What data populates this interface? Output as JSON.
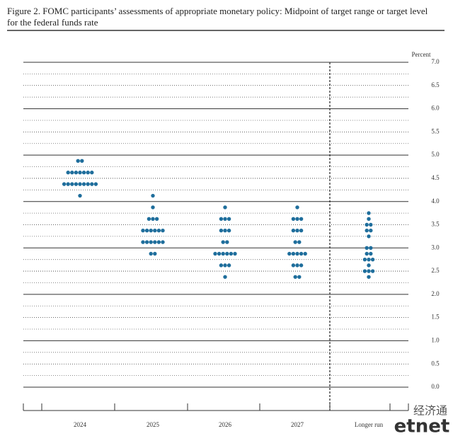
{
  "chart_data": {
    "type": "dot",
    "title": "Figure 2.  FOMC participants’ assessments of appropriate monetary policy:  Midpoint of target range or target level for the federal funds rate",
    "y_label": "Percent",
    "categories": [
      "2024",
      "2025",
      "2026",
      "2027",
      "Longer run"
    ],
    "color": "#1f6e9c",
    "values": [
      [
        4.875,
        4.875,
        4.625,
        4.625,
        4.625,
        4.625,
        4.625,
        4.625,
        4.625,
        4.375,
        4.375,
        4.375,
        4.375,
        4.375,
        4.375,
        4.375,
        4.375,
        4.375,
        4.125
      ],
      [
        4.125,
        3.875,
        3.625,
        3.625,
        3.625,
        3.375,
        3.375,
        3.375,
        3.375,
        3.375,
        3.375,
        3.125,
        3.125,
        3.125,
        3.125,
        3.125,
        3.125,
        2.875,
        2.875
      ],
      [
        3.875,
        3.625,
        3.625,
        3.625,
        3.375,
        3.375,
        3.375,
        3.125,
        3.125,
        2.875,
        2.875,
        2.875,
        2.875,
        2.875,
        2.875,
        2.625,
        2.625,
        2.625,
        2.375
      ],
      [
        3.875,
        3.625,
        3.625,
        3.625,
        3.375,
        3.375,
        3.375,
        3.125,
        3.125,
        2.875,
        2.875,
        2.875,
        2.875,
        2.875,
        2.625,
        2.625,
        2.625,
        2.375,
        2.375
      ],
      [
        3.75,
        3.625,
        3.5,
        3.5,
        3.375,
        3.375,
        3.25,
        3.0,
        3.0,
        2.875,
        2.875,
        2.75,
        2.75,
        2.75,
        2.625,
        2.5,
        2.5,
        2.5,
        2.375
      ]
    ],
    "ylim": [
      0,
      7
    ],
    "yticks": [
      {
        "value": 7,
        "label": "7.0"
      },
      {
        "value": 6.5,
        "label": "6.5"
      },
      {
        "value": 6,
        "label": "6.0"
      },
      {
        "value": 5.5,
        "label": "5.5"
      },
      {
        "value": 5,
        "label": "5.0"
      },
      {
        "value": 4.5,
        "label": "4.5"
      },
      {
        "value": 4,
        "label": "4.0"
      },
      {
        "value": 3.5,
        "label": "3.5"
      },
      {
        "value": 3,
        "label": "3.0"
      },
      {
        "value": 2.5,
        "label": "2.5"
      },
      {
        "value": 2,
        "label": "2.0"
      },
      {
        "value": 1.5,
        "label": "1.5"
      },
      {
        "value": 1,
        "label": "1.0"
      },
      {
        "value": 0.5,
        "label": "0.5"
      },
      {
        "value": 0,
        "label": "0.0"
      }
    ],
    "yminorticks": [
      6.75,
      6.25,
      5.75,
      5.25,
      4.75,
      4.25,
      3.75,
      3.25,
      2.75,
      2.25,
      1.75,
      1.25,
      0.75,
      0.25
    ],
    "grid": true
  },
  "watermark": {
    "cn": "经济通",
    "en": "etnet"
  }
}
